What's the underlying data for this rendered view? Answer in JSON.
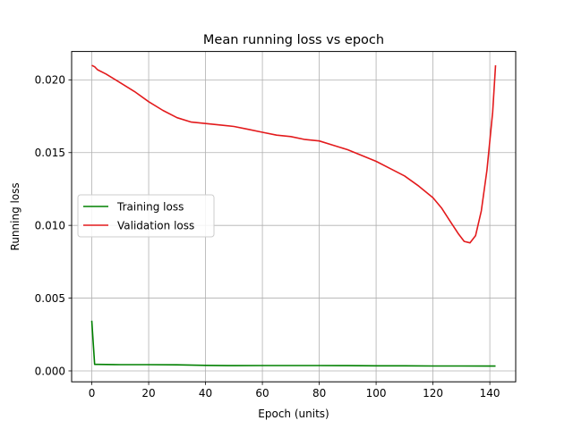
{
  "chart_data": {
    "type": "line",
    "title": "Mean running loss vs epoch",
    "xlabel": "Epoch (units)",
    "ylabel": "Running loss",
    "xlim": [
      -7.1,
      149.1
    ],
    "ylim": [
      -0.00075,
      0.02195
    ],
    "xticks": [
      0,
      20,
      40,
      60,
      80,
      100,
      120,
      140
    ],
    "xtick_labels": [
      "0",
      "20",
      "40",
      "60",
      "80",
      "100",
      "120",
      "140"
    ],
    "yticks": [
      0.0,
      0.005,
      0.01,
      0.015,
      0.02
    ],
    "ytick_labels": [
      "0.000",
      "0.005",
      "0.010",
      "0.015",
      "0.020"
    ],
    "grid": true,
    "legend_position": "center-left",
    "series": [
      {
        "name": "Training loss",
        "color": "#008000",
        "x": [
          0,
          1,
          2,
          5,
          10,
          20,
          30,
          40,
          50,
          60,
          70,
          80,
          90,
          100,
          110,
          120,
          130,
          140,
          142
        ],
        "y": [
          0.00345,
          0.00045,
          0.00045,
          0.00044,
          0.00043,
          0.00043,
          0.00042,
          0.00038,
          0.00036,
          0.00037,
          0.00037,
          0.00037,
          0.00036,
          0.00035,
          0.00035,
          0.00034,
          0.00034,
          0.00033,
          0.00033
        ]
      },
      {
        "name": "Validation loss",
        "color": "#e31a1c",
        "x": [
          0,
          1,
          2,
          5,
          10,
          15,
          20,
          25,
          30,
          35,
          40,
          45,
          50,
          55,
          60,
          65,
          70,
          75,
          80,
          85,
          90,
          95,
          100,
          105,
          110,
          115,
          120,
          123,
          126,
          129,
          131,
          133,
          135,
          137,
          139,
          141,
          142
        ],
        "y": [
          0.021,
          0.0209,
          0.0207,
          0.0204,
          0.0198,
          0.0192,
          0.0185,
          0.0179,
          0.0174,
          0.0171,
          0.017,
          0.0169,
          0.0168,
          0.0166,
          0.0164,
          0.0162,
          0.0161,
          0.0159,
          0.0158,
          0.0155,
          0.0152,
          0.0148,
          0.0144,
          0.0139,
          0.0134,
          0.0127,
          0.0119,
          0.0112,
          0.0103,
          0.0094,
          0.0089,
          0.0088,
          0.0093,
          0.011,
          0.0138,
          0.0178,
          0.021
        ]
      }
    ]
  }
}
